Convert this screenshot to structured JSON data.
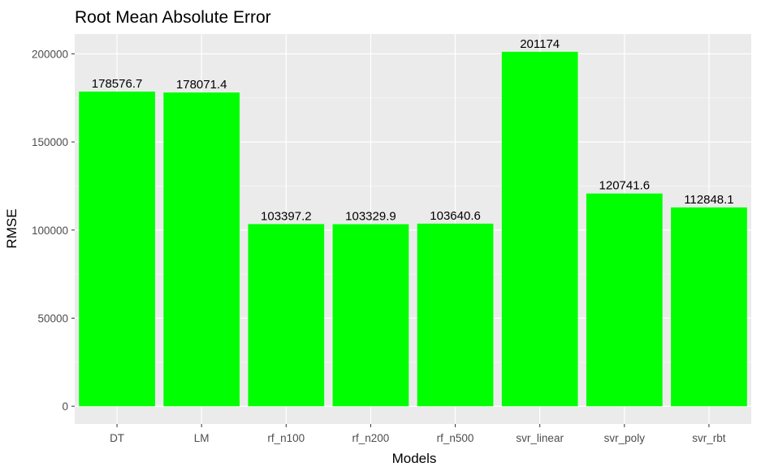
{
  "chart_data": {
    "type": "bar",
    "title": "Root Mean Absolute Error",
    "xlabel": "Models",
    "ylabel": "RMSE",
    "categories": [
      "DT",
      "LM",
      "rf_n100",
      "rf_n200",
      "rf_n500",
      "svr_linear",
      "svr_poly",
      "svr_rbt"
    ],
    "values": [
      178576.7,
      178071.4,
      103397.2,
      103329.9,
      103640.6,
      201174,
      120741.6,
      112848.1
    ],
    "value_labels": [
      "178576.7",
      "178071.4",
      "103397.2",
      "103329.9",
      "103640.6",
      "201174",
      "120741.6",
      "112848.1"
    ],
    "yticks": [
      0,
      50000,
      100000,
      150000,
      200000
    ],
    "ytick_labels": [
      "0",
      "50000",
      "100000",
      "150000",
      "200000"
    ],
    "ylim": [
      -10058.7,
      211232.7
    ],
    "grid": true,
    "legend": "none",
    "colors": {
      "bar": "#00ff00",
      "panel_background": "#ebebeb",
      "grid_major": "#ffffff",
      "grid_minor": "#f5f5f5"
    }
  }
}
